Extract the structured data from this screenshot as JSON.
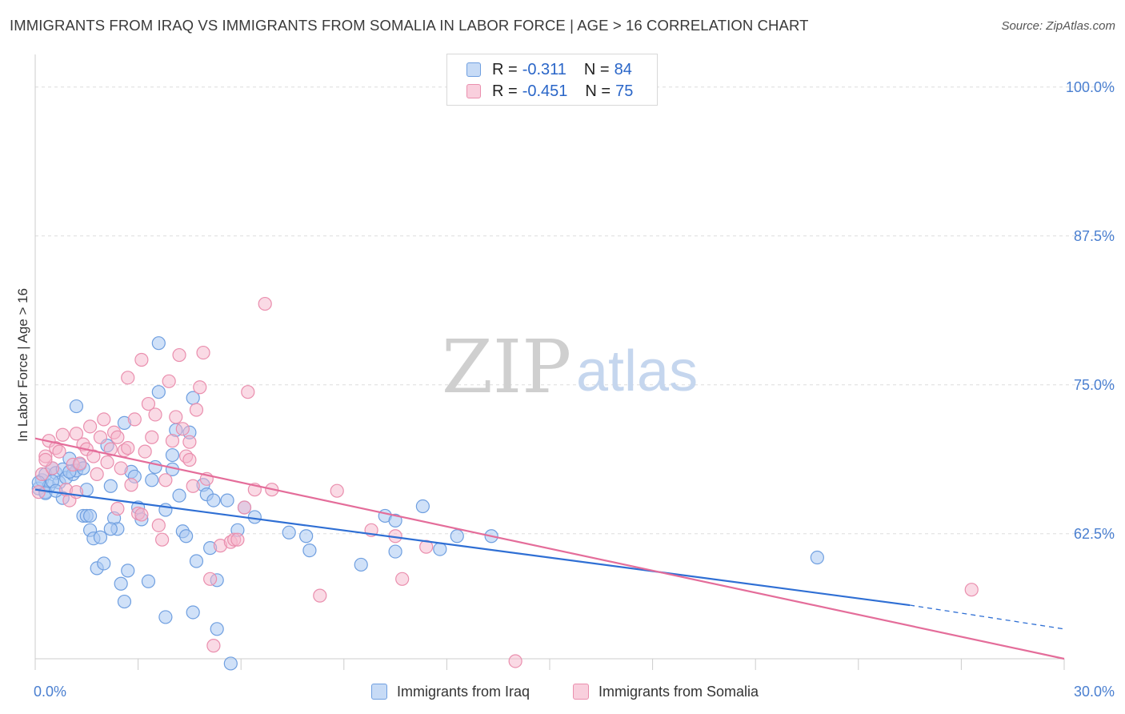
{
  "title": "IMMIGRANTS FROM IRAQ VS IMMIGRANTS FROM SOMALIA IN LABOR FORCE | AGE > 16 CORRELATION CHART",
  "source": "Source: ZipAtlas.com",
  "watermark": {
    "zip": "ZIP",
    "atlas": "atlas"
  },
  "colors": {
    "iraq_fill": "#a9c8f2",
    "iraq_stroke": "#6f9fe0",
    "iraq_line": "#2f6fd4",
    "somalia_fill": "#f6b6cb",
    "somalia_stroke": "#ea8fae",
    "somalia_line": "#e46d9a",
    "axis_text": "#4a7fd0",
    "grid": "#dddddd"
  },
  "legend": {
    "iraq": {
      "r_label": "R =",
      "r_value": "-0.311",
      "n_label": "N =",
      "n_value": "84"
    },
    "somalia": {
      "r_label": "R =",
      "r_value": "-0.451",
      "n_label": "N =",
      "n_value": "75"
    }
  },
  "bottom_legend": {
    "iraq": "Immigrants from Iraq",
    "somalia": "Immigrants from Somalia"
  },
  "chart_data": {
    "type": "scatter",
    "title": "IMMIGRANTS FROM IRAQ VS IMMIGRANTS FROM SOMALIA IN LABOR FORCE | AGE > 16 CORRELATION CHART",
    "xlabel": "",
    "ylabel": "In Labor Force | Age > 16",
    "xlim": [
      0,
      30
    ],
    "ylim": [
      52,
      102
    ],
    "x_tick_labels": [
      "0.0%",
      "30.0%"
    ],
    "y_ticks": [
      62.5,
      75.0,
      87.5,
      100.0
    ],
    "y_tick_labels": [
      "62.5%",
      "75.0%",
      "87.5%",
      "100.0%"
    ],
    "series": [
      {
        "name": "Immigrants from Iraq",
        "r": -0.311,
        "n": 84,
        "trend": {
          "x0": 0,
          "y0": 66.2,
          "x1": 25.5,
          "y1": 56.5,
          "dash_to_x": 30,
          "dash_to_y": 54.5
        },
        "points": [
          [
            0.1,
            66.3
          ],
          [
            0.2,
            67.0
          ],
          [
            0.3,
            66.0
          ],
          [
            0.3,
            67.5
          ],
          [
            0.4,
            66.5
          ],
          [
            0.5,
            68.0
          ],
          [
            0.6,
            67.6
          ],
          [
            0.7,
            66.8
          ],
          [
            0.8,
            67.9
          ],
          [
            0.9,
            67.2
          ],
          [
            1.0,
            68.8
          ],
          [
            1.1,
            67.5
          ],
          [
            1.2,
            67.8
          ],
          [
            1.3,
            68.3
          ],
          [
            1.4,
            68.0
          ],
          [
            1.5,
            66.2
          ],
          [
            1.2,
            73.2
          ],
          [
            1.4,
            64.0
          ],
          [
            1.5,
            64.0
          ],
          [
            1.6,
            62.8
          ],
          [
            1.7,
            62.1
          ],
          [
            1.8,
            59.6
          ],
          [
            1.9,
            62.2
          ],
          [
            2.0,
            60.0
          ],
          [
            2.1,
            69.9
          ],
          [
            2.2,
            66.5
          ],
          [
            2.3,
            63.8
          ],
          [
            2.4,
            62.9
          ],
          [
            2.5,
            58.3
          ],
          [
            2.6,
            56.8
          ],
          [
            2.6,
            71.8
          ],
          [
            2.7,
            59.4
          ],
          [
            2.8,
            67.7
          ],
          [
            2.9,
            67.3
          ],
          [
            3.0,
            64.7
          ],
          [
            3.1,
            63.7
          ],
          [
            3.3,
            58.5
          ],
          [
            3.4,
            67.0
          ],
          [
            3.5,
            68.1
          ],
          [
            3.6,
            78.5
          ],
          [
            3.6,
            74.4
          ],
          [
            3.8,
            55.5
          ],
          [
            3.8,
            64.5
          ],
          [
            4.0,
            69.1
          ],
          [
            4.0,
            67.9
          ],
          [
            4.1,
            71.2
          ],
          [
            4.2,
            65.7
          ],
          [
            4.3,
            62.7
          ],
          [
            4.4,
            62.3
          ],
          [
            4.5,
            71.0
          ],
          [
            4.6,
            73.9
          ],
          [
            4.6,
            55.9
          ],
          [
            4.7,
            60.2
          ],
          [
            4.9,
            66.6
          ],
          [
            5.0,
            65.8
          ],
          [
            5.1,
            61.3
          ],
          [
            5.2,
            65.3
          ],
          [
            5.3,
            54.5
          ],
          [
            5.3,
            58.6
          ],
          [
            5.6,
            65.3
          ],
          [
            5.7,
            51.6
          ],
          [
            5.9,
            62.8
          ],
          [
            6.1,
            64.7
          ],
          [
            6.4,
            63.9
          ],
          [
            7.4,
            62.6
          ],
          [
            7.9,
            62.3
          ],
          [
            8.0,
            61.1
          ],
          [
            9.5,
            59.9
          ],
          [
            10.2,
            64.0
          ],
          [
            10.5,
            61.0
          ],
          [
            10.5,
            63.6
          ],
          [
            11.3,
            64.8
          ],
          [
            11.8,
            61.2
          ],
          [
            12.3,
            62.3
          ],
          [
            13.3,
            62.3
          ],
          [
            22.8,
            60.5
          ],
          [
            0.1,
            66.8
          ],
          [
            0.5,
            66.9
          ],
          [
            0.8,
            65.5
          ],
          [
            1.0,
            67.7
          ],
          [
            0.3,
            65.9
          ],
          [
            0.6,
            66.1
          ],
          [
            1.6,
            64.0
          ],
          [
            2.2,
            62.9
          ]
        ]
      },
      {
        "name": "Immigrants from Somalia",
        "r": -0.451,
        "n": 75,
        "trend": {
          "x0": 0,
          "y0": 70.5,
          "x1": 30,
          "y1": 52.0
        },
        "points": [
          [
            0.1,
            66.0
          ],
          [
            0.2,
            67.5
          ],
          [
            0.3,
            69.0
          ],
          [
            0.4,
            70.3
          ],
          [
            0.5,
            68.0
          ],
          [
            0.6,
            69.7
          ],
          [
            0.7,
            69.4
          ],
          [
            0.8,
            70.8
          ],
          [
            0.9,
            66.2
          ],
          [
            1.0,
            65.3
          ],
          [
            1.1,
            68.3
          ],
          [
            1.2,
            70.9
          ],
          [
            1.3,
            68.4
          ],
          [
            1.4,
            70.0
          ],
          [
            1.5,
            69.6
          ],
          [
            1.6,
            71.5
          ],
          [
            1.7,
            69.0
          ],
          [
            1.8,
            67.5
          ],
          [
            1.9,
            70.6
          ],
          [
            2.0,
            72.1
          ],
          [
            2.1,
            68.5
          ],
          [
            2.2,
            69.6
          ],
          [
            2.3,
            71.0
          ],
          [
            2.4,
            70.6
          ],
          [
            2.5,
            68.0
          ],
          [
            2.6,
            69.5
          ],
          [
            2.7,
            69.7
          ],
          [
            2.8,
            66.6
          ],
          [
            2.7,
            75.6
          ],
          [
            2.9,
            72.1
          ],
          [
            3.0,
            64.2
          ],
          [
            3.1,
            64.1
          ],
          [
            3.1,
            77.1
          ],
          [
            3.2,
            69.4
          ],
          [
            3.3,
            73.4
          ],
          [
            3.4,
            70.6
          ],
          [
            3.5,
            72.5
          ],
          [
            3.6,
            63.2
          ],
          [
            3.7,
            62.0
          ],
          [
            3.8,
            67.0
          ],
          [
            3.9,
            75.3
          ],
          [
            4.0,
            70.3
          ],
          [
            4.1,
            72.3
          ],
          [
            4.2,
            77.5
          ],
          [
            4.3,
            71.3
          ],
          [
            4.4,
            69.0
          ],
          [
            4.5,
            70.2
          ],
          [
            4.6,
            66.5
          ],
          [
            4.7,
            72.9
          ],
          [
            4.8,
            74.8
          ],
          [
            4.9,
            77.7
          ],
          [
            5.0,
            67.1
          ],
          [
            5.1,
            58.7
          ],
          [
            5.2,
            53.1
          ],
          [
            5.4,
            61.5
          ],
          [
            5.7,
            61.8
          ],
          [
            5.8,
            62.0
          ],
          [
            5.9,
            62.0
          ],
          [
            6.1,
            64.7
          ],
          [
            6.2,
            74.4
          ],
          [
            6.4,
            66.2
          ],
          [
            6.9,
            66.2
          ],
          [
            6.7,
            81.8
          ],
          [
            8.3,
            57.3
          ],
          [
            8.8,
            66.1
          ],
          [
            9.8,
            62.8
          ],
          [
            10.5,
            62.3
          ],
          [
            10.7,
            58.7
          ],
          [
            11.4,
            61.4
          ],
          [
            14.0,
            51.8
          ],
          [
            27.3,
            57.8
          ],
          [
            0.3,
            68.7
          ],
          [
            1.2,
            66.0
          ],
          [
            2.4,
            64.6
          ],
          [
            4.5,
            68.7
          ]
        ]
      }
    ]
  }
}
